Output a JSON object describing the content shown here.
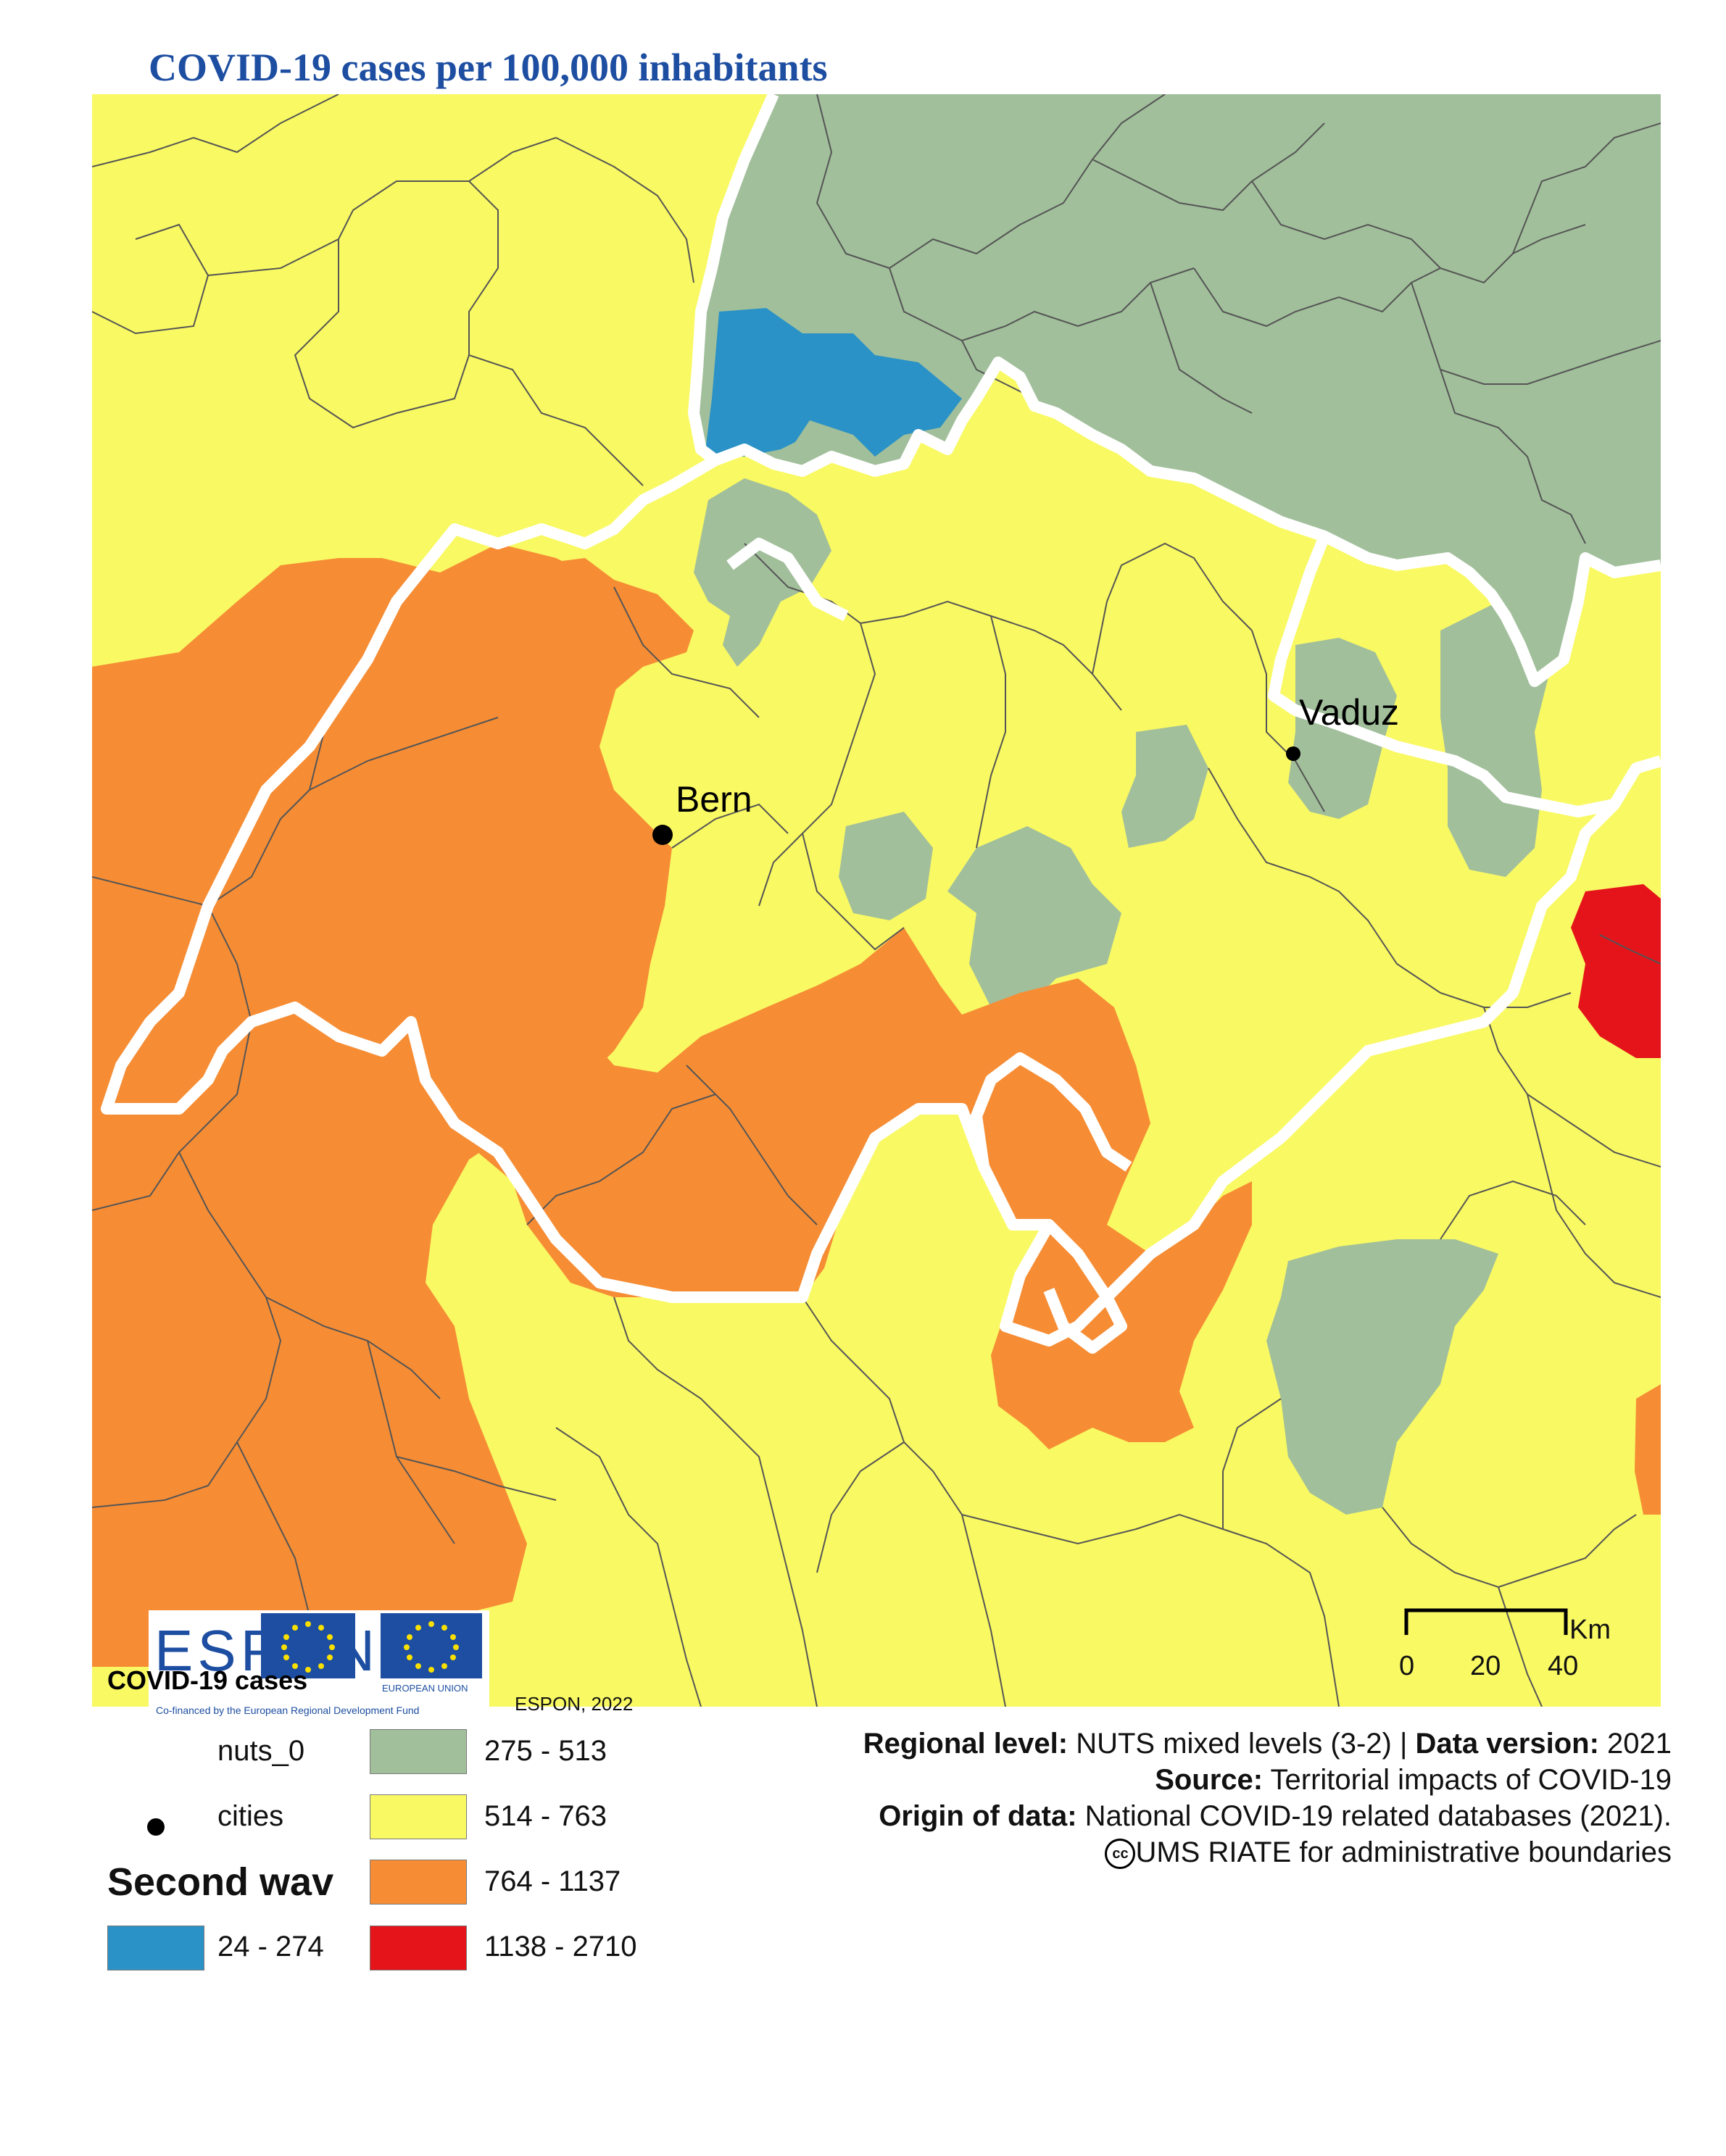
{
  "title": "COVID-19 cases per 100,000 inhabitants",
  "colors": {
    "green": "#a1bf9b",
    "yellow": "#f9f963",
    "orange": "#f68d35",
    "red": "#e5141a",
    "blue": "#2a92c6",
    "border": "#555555",
    "national_border": "#ffffff"
  },
  "cities": [
    {
      "name": "Bern"
    },
    {
      "name": "Vaduz"
    }
  ],
  "branding": {
    "espon_word": "ESPON",
    "eu_caption": "EUROPEAN UNION",
    "cofinanced": "Co-financed by the European Regional Development Fund"
  },
  "legend": {
    "heading": "COVID-19 cases",
    "credit_year": "ESPON, 2022",
    "nuts_label": "nuts_0",
    "cities_label": "cities",
    "section_title": "Second wav",
    "classes": [
      {
        "range": "24 - 274",
        "color": "#2a92c6"
      },
      {
        "range": "275 - 513",
        "color": "#a1bf9b"
      },
      {
        "range": "514 - 763",
        "color": "#f9f963"
      },
      {
        "range": "764 - 1137",
        "color": "#f68d35"
      },
      {
        "range": "1138 - 2710",
        "color": "#e5141a"
      }
    ]
  },
  "meta": {
    "regional_level_label": "Regional level:",
    "regional_level_value": "NUTS mixed levels (3-2) |",
    "data_version_label": "Data version:",
    "data_version_value": "2021",
    "source_label": "Source:",
    "source_value": "Territorial impacts of COVID-19",
    "origin_label": "Origin of data:",
    "origin_value": "National COVID-19 related databases (2021).",
    "boundaries": "UMS RIATE for administrative boundaries",
    "cc_symbol": "cc"
  },
  "scale": {
    "unit": "Km",
    "ticks": [
      "0",
      "20",
      "40"
    ]
  }
}
